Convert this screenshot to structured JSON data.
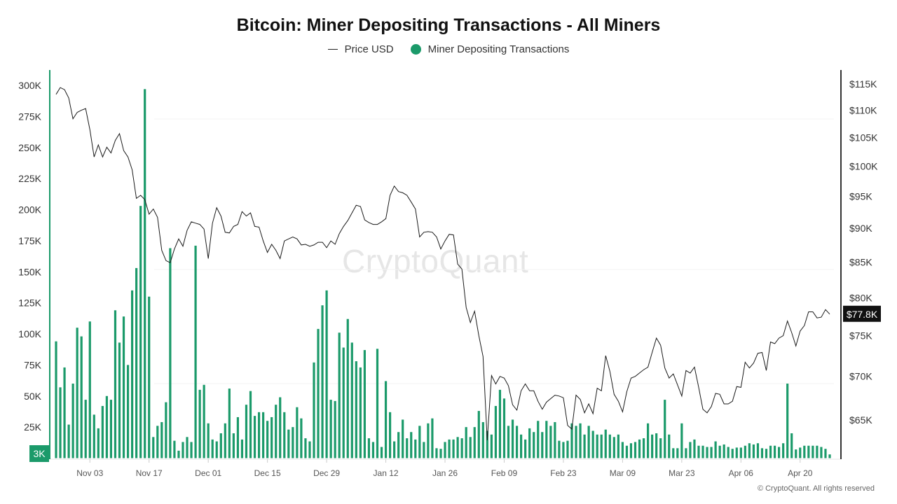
{
  "chart_data": {
    "type": "bar+line",
    "title": "Bitcoin: Miner Depositing Transactions - All Miners",
    "legend": {
      "placement": "top-center",
      "entries": [
        "Price USD",
        "Miner Depositing Transactions"
      ]
    },
    "watermark": "CryptoQuant",
    "footer": "© CryptoQuant. All rights reserved",
    "colors": {
      "bars": "#1b9a6a",
      "price_line": "#1a1a1a",
      "left_axis": "#1b9a6a",
      "right_axis": "#333333"
    },
    "left_axis": {
      "range": [
        0,
        300000
      ],
      "scale": "linear",
      "ticks": [
        "300K",
        "275K",
        "250K",
        "225K",
        "200K",
        "175K",
        "150K",
        "125K",
        "100K",
        "75K",
        "50K",
        "25K"
      ],
      "tick_values": [
        300000,
        275000,
        250000,
        225000,
        200000,
        175000,
        150000,
        125000,
        100000,
        75000,
        50000,
        25000
      ],
      "current_value_label": "3K"
    },
    "right_axis": {
      "range": [
        61000,
        115000
      ],
      "scale": "log",
      "ticks": [
        "$115K",
        "$110K",
        "$105K",
        "$100K",
        "$95K",
        "$90K",
        "$85K",
        "$80K",
        "$75K",
        "$70K",
        "$65K"
      ],
      "tick_values": [
        115000,
        110000,
        105000,
        100000,
        95000,
        90000,
        85000,
        80000,
        75000,
        70000,
        65000
      ],
      "current_value_label": "$77.8K"
    },
    "x_ticks": [
      "Nov 03",
      "Nov 17",
      "Dec 01",
      "Dec 15",
      "Dec 29",
      "Jan 12",
      "Jan 26",
      "Feb 09",
      "Feb 23",
      "Mar 09",
      "Mar 23",
      "Apr 06",
      "Apr 20"
    ],
    "grid": false,
    "x": [
      "Oct 26",
      "Oct 27",
      "Oct 28",
      "Oct 29",
      "Oct 30",
      "Oct 31",
      "Nov 01",
      "Nov 02",
      "Nov 03",
      "Nov 04",
      "Nov 05",
      "Nov 06",
      "Nov 07",
      "Nov 08",
      "Nov 09",
      "Nov 10",
      "Nov 11",
      "Nov 12",
      "Nov 13",
      "Nov 14",
      "Nov 15",
      "Nov 16",
      "Nov 17",
      "Nov 18",
      "Nov 19",
      "Nov 20",
      "Nov 21",
      "Nov 22",
      "Nov 23",
      "Nov 24",
      "Nov 25",
      "Nov 26",
      "Nov 27",
      "Nov 28",
      "Nov 29",
      "Nov 30",
      "Dec 01",
      "Dec 02",
      "Dec 03",
      "Dec 04",
      "Dec 05",
      "Dec 06",
      "Dec 07",
      "Dec 08",
      "Dec 09",
      "Dec 10",
      "Dec 11",
      "Dec 12",
      "Dec 13",
      "Dec 14",
      "Dec 15",
      "Dec 16",
      "Dec 17",
      "Dec 18",
      "Dec 19",
      "Dec 20",
      "Dec 21",
      "Dec 22",
      "Dec 23",
      "Dec 24",
      "Dec 25",
      "Dec 26",
      "Dec 27",
      "Dec 28",
      "Dec 29",
      "Dec 30",
      "Dec 31",
      "Jan 01",
      "Jan 02",
      "Jan 03",
      "Jan 04",
      "Jan 05",
      "Jan 06",
      "Jan 07",
      "Jan 08",
      "Jan 09",
      "Jan 10",
      "Jan 11",
      "Jan 12",
      "Jan 13",
      "Jan 14",
      "Jan 15",
      "Jan 16",
      "Jan 17",
      "Jan 18",
      "Jan 19",
      "Jan 20",
      "Jan 21",
      "Jan 22",
      "Jan 23",
      "Jan 24",
      "Jan 25",
      "Jan 26",
      "Jan 27",
      "Jan 28",
      "Jan 29",
      "Jan 30",
      "Jan 31",
      "Feb 01",
      "Feb 02",
      "Feb 03",
      "Feb 04",
      "Feb 05",
      "Feb 06",
      "Feb 07",
      "Feb 08",
      "Feb 09",
      "Feb 10",
      "Feb 11",
      "Feb 12",
      "Feb 13",
      "Feb 14",
      "Feb 15",
      "Feb 16",
      "Feb 17",
      "Feb 18",
      "Feb 19",
      "Feb 20",
      "Feb 21",
      "Feb 22",
      "Feb 23",
      "Feb 24",
      "Feb 25",
      "Feb 26",
      "Feb 27",
      "Feb 28",
      "Mar 01",
      "Mar 02",
      "Mar 03",
      "Mar 04",
      "Mar 05",
      "Mar 06",
      "Mar 07",
      "Mar 08",
      "Mar 09",
      "Mar 10",
      "Mar 11",
      "Mar 12",
      "Mar 13",
      "Mar 14",
      "Mar 15",
      "Mar 16",
      "Mar 17",
      "Mar 18",
      "Mar 19",
      "Mar 20",
      "Mar 21",
      "Mar 22",
      "Mar 23",
      "Mar 24",
      "Mar 25",
      "Mar 26",
      "Mar 27",
      "Mar 28",
      "Mar 29",
      "Mar 30",
      "Mar 31",
      "Apr 01",
      "Apr 02",
      "Apr 03",
      "Apr 04",
      "Apr 05",
      "Apr 06",
      "Apr 07",
      "Apr 08",
      "Apr 09",
      "Apr 10",
      "Apr 11",
      "Apr 12",
      "Apr 13",
      "Apr 14",
      "Apr 15",
      "Apr 16",
      "Apr 17",
      "Apr 18",
      "Apr 19",
      "Apr 20",
      "Apr 21",
      "Apr 22",
      "Apr 23",
      "Apr 24",
      "Apr 25",
      "Apr 26",
      "Apr 27"
    ],
    "series": [
      {
        "name": "Miner Depositing Transactions",
        "type": "bar",
        "axis": "left",
        "unit": "K",
        "values": [
          94,
          57,
          73,
          27,
          60,
          105,
          98,
          47,
          110,
          35,
          24,
          42,
          50,
          47,
          119,
          93,
          114,
          75,
          135,
          153,
          203,
          297,
          130,
          17,
          26,
          29,
          45,
          169,
          14,
          6,
          13,
          17,
          13,
          171,
          55,
          59,
          28,
          15,
          13.5,
          20,
          28,
          56,
          20,
          33,
          15,
          43,
          54,
          34,
          37,
          37,
          30,
          33,
          43,
          49,
          37,
          23,
          25,
          41,
          32,
          16,
          13.5,
          77,
          104,
          123,
          135,
          47,
          46,
          101,
          89,
          112,
          93,
          78,
          73,
          87,
          16,
          13,
          88,
          9,
          62,
          37,
          13.5,
          21,
          31,
          16,
          21,
          15,
          26,
          13,
          28,
          32,
          8,
          7.5,
          13,
          15,
          15,
          17,
          16,
          25,
          17,
          25,
          38,
          29,
          22,
          19,
          42,
          55,
          48,
          26,
          31,
          26,
          19,
          15,
          24,
          21,
          30,
          21,
          30,
          26,
          29,
          14,
          13,
          14,
          28,
          26,
          28,
          19,
          26,
          22,
          19,
          19,
          23,
          19,
          17,
          19,
          13,
          10,
          12,
          13,
          15,
          16,
          28,
          19,
          20,
          16,
          47,
          19,
          8,
          8,
          28,
          8,
          13,
          15,
          10,
          10,
          9,
          9,
          13.5,
          10,
          11,
          9,
          7.5,
          8.5,
          8.5,
          10,
          12,
          11,
          12,
          8,
          7.5,
          10,
          10,
          9,
          12,
          60,
          20,
          7,
          8.5,
          10,
          10,
          10,
          10,
          9,
          7.5,
          3
        ]
      },
      {
        "name": "Price USD",
        "type": "line",
        "axis": "right",
        "unit": "K USD",
        "values": [
          113.0,
          114.3,
          113.9,
          112.3,
          108.4,
          109.6,
          110.0,
          110.3,
          106.4,
          101.6,
          103.7,
          101.6,
          103.3,
          102.3,
          104.5,
          105.7,
          102.7,
          101.6,
          99.4,
          94.7,
          95.2,
          94.5,
          92.2,
          93.0,
          91.7,
          86.7,
          85.2,
          84.9,
          86.9,
          88.4,
          87.3,
          89.7,
          91.0,
          90.8,
          90.6,
          89.9,
          85.5,
          90.8,
          93.2,
          91.9,
          89.4,
          89.3,
          90.3,
          90.6,
          92.6,
          91.9,
          92.4,
          90.3,
          90.2,
          88.1,
          86.4,
          87.6,
          86.7,
          85.5,
          88.1,
          88.4,
          88.7,
          88.4,
          87.5,
          87.6,
          87.3,
          87.5,
          87.9,
          87.9,
          87.1,
          88.1,
          87.6,
          89.2,
          90.3,
          91.2,
          92.4,
          93.6,
          93.4,
          91.3,
          90.9,
          90.6,
          90.6,
          91.0,
          91.5,
          95.2,
          96.7,
          95.8,
          95.6,
          95.2,
          94.1,
          93.0,
          88.7,
          89.4,
          89.5,
          89.4,
          88.7,
          86.9,
          88.1,
          89.1,
          89.0,
          84.7,
          84.0,
          78.7,
          76.7,
          78.2,
          75.0,
          72.4,
          62.8,
          70.1,
          69.1,
          70.0,
          69.8,
          68.9,
          66.7,
          66.1,
          68.3,
          69.1,
          68.3,
          68.3,
          67.1,
          66.2,
          67.0,
          67.4,
          67.8,
          67.7,
          67.5,
          64.4,
          64.0,
          67.8,
          67.3,
          65.8,
          66.8,
          65.7,
          68.6,
          68.3,
          72.5,
          70.6,
          67.9,
          67.1,
          65.9,
          68.2,
          69.8,
          70.0,
          70.4,
          70.8,
          71.1,
          72.9,
          74.7,
          73.8,
          71.0,
          69.8,
          70.3,
          69.0,
          67.7,
          70.7,
          70.4,
          71.1,
          68.7,
          66.2,
          65.8,
          66.5,
          68.0,
          67.9,
          66.8,
          66.8,
          67.1,
          68.8,
          68.7,
          71.7,
          71.0,
          71.6,
          72.8,
          72.9,
          70.7,
          74.2,
          74.0,
          74.7,
          75.0,
          76.9,
          75.4,
          73.7,
          75.6,
          76.3,
          78.1,
          78.1,
          77.3,
          77.4,
          78.4,
          77.8
        ]
      }
    ]
  }
}
